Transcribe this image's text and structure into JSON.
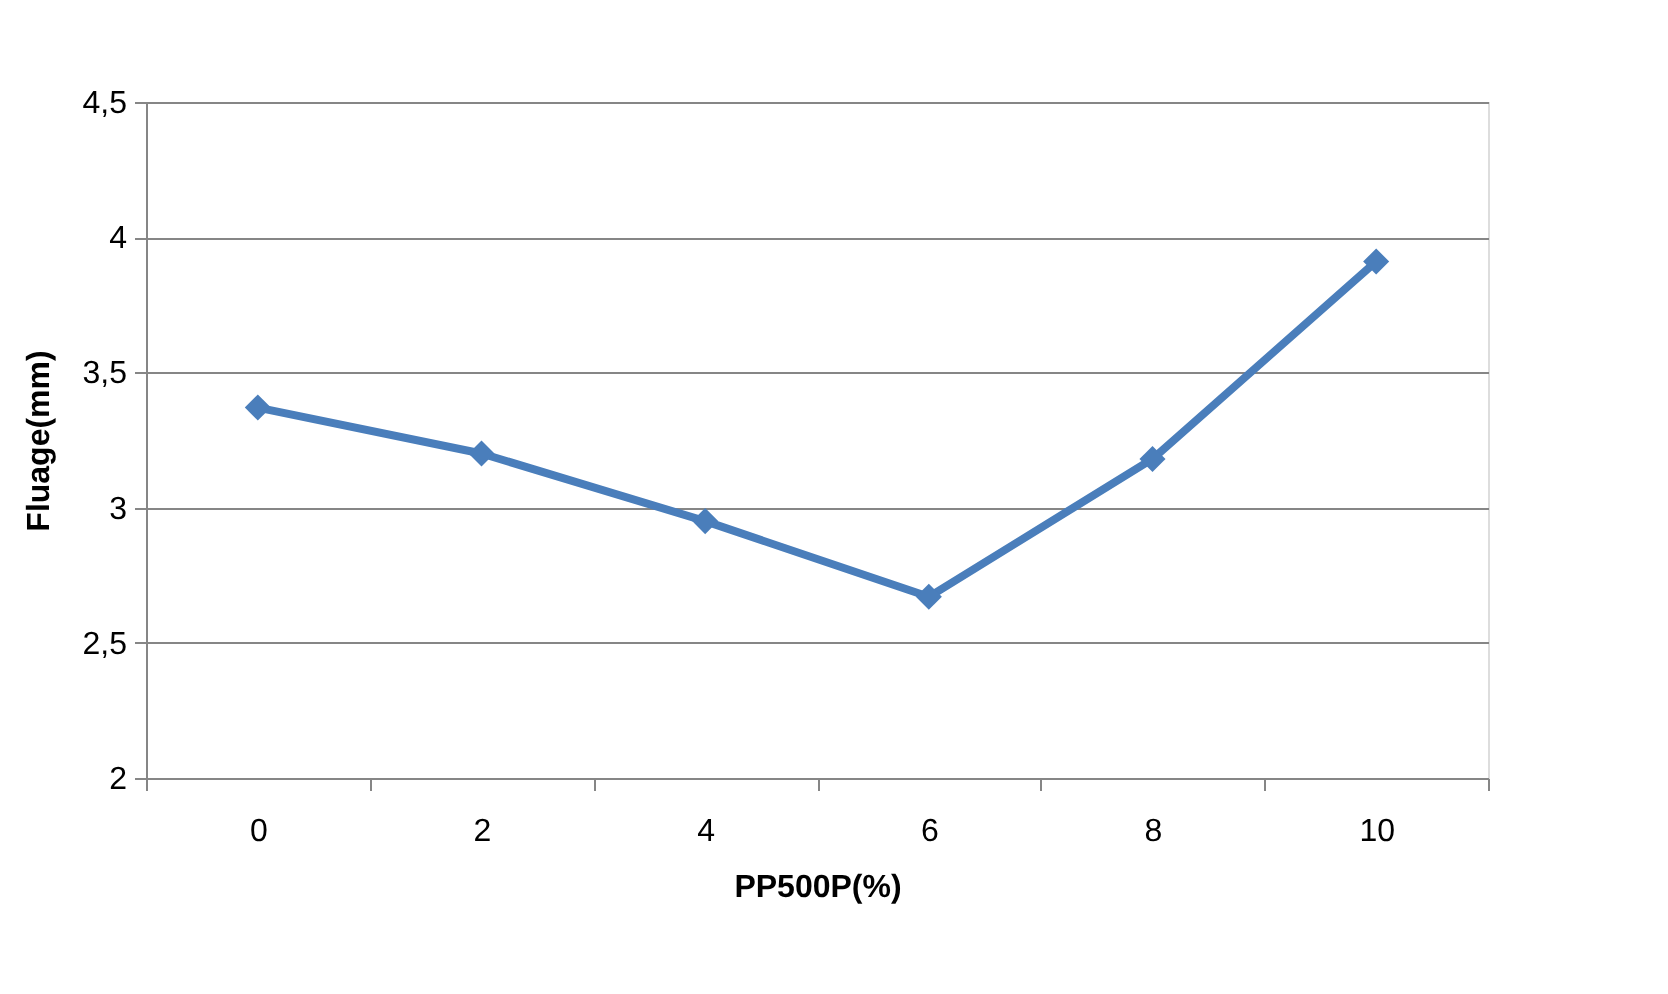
{
  "chart_data": {
    "type": "line",
    "xlabel": "PP500P(%)",
    "ylabel": "Fluage(mm)",
    "categories": [
      "0",
      "2",
      "4",
      "6",
      "8",
      "10"
    ],
    "series": [
      {
        "color": "#4a7ebb",
        "values": [
          3.37,
          3.2,
          2.95,
          2.67,
          3.18,
          3.91
        ]
      }
    ],
    "ylim": [
      2,
      4.5
    ],
    "yticks": [
      2,
      {
        "value": 2.5,
        "label": "2,5"
      },
      3,
      {
        "value": 3.5,
        "label": "3,5"
      },
      4,
      {
        "value": 4.5,
        "label": "4,5"
      }
    ],
    "grid": "y",
    "marker": "diamond",
    "line_style": "solid",
    "legend": false
  }
}
